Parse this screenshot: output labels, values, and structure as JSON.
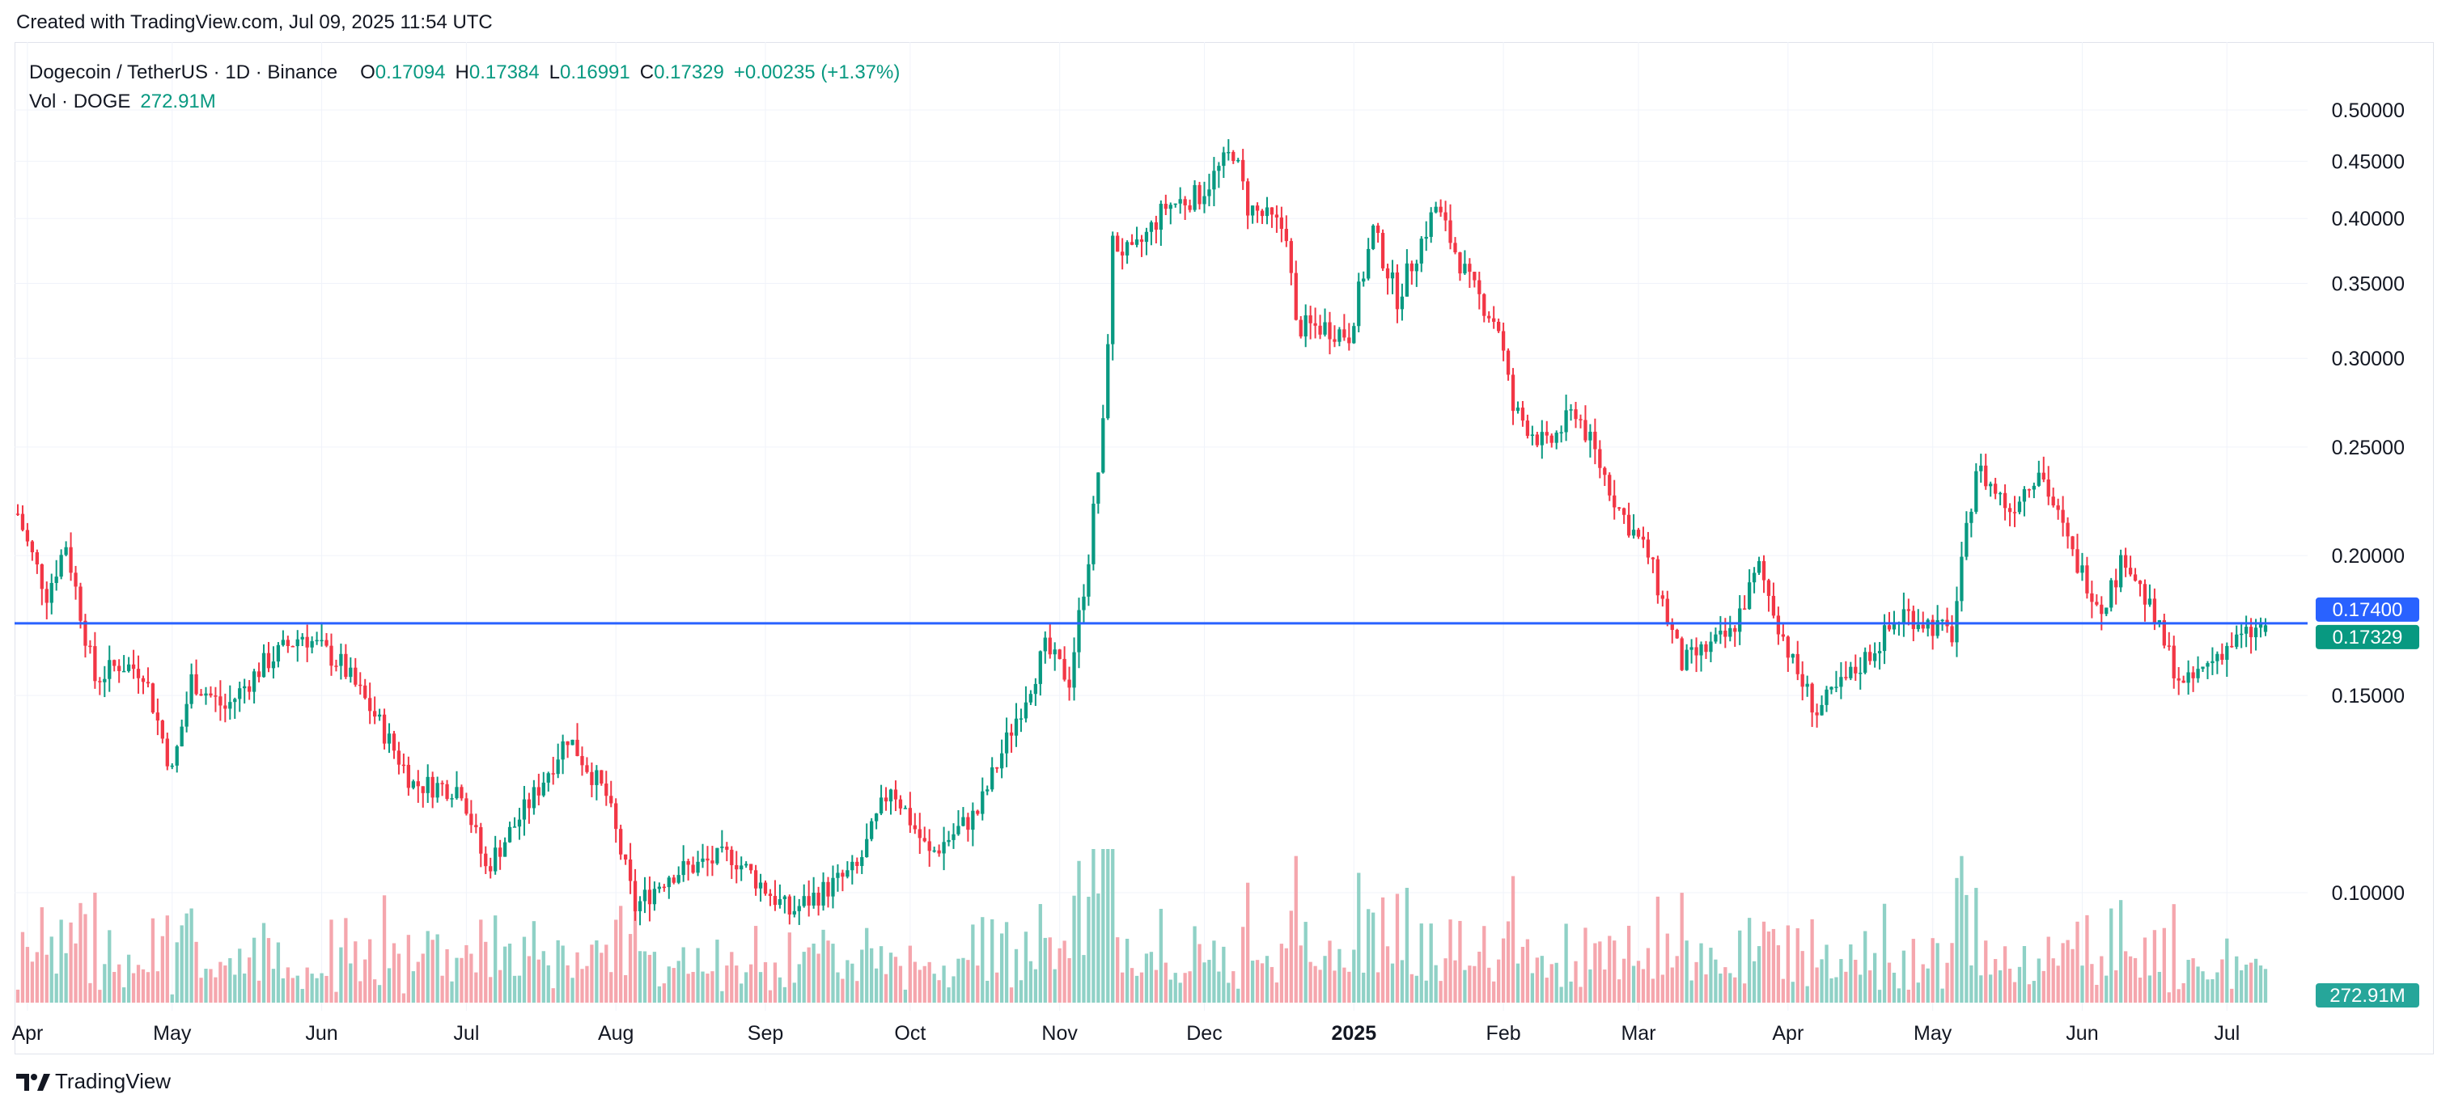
{
  "header": {
    "created_text": "Created with TradingView.com, Jul 09, 2025 11:54 UTC"
  },
  "legend": {
    "symbol": "Dogecoin / TetherUS · 1D · Binance",
    "o_label": "O",
    "o_value": "0.17094",
    "h_label": "H",
    "h_value": "0.17384",
    "l_label": "L",
    "l_value": "0.16991",
    "c_label": "C",
    "c_value": "0.17329",
    "change": "+0.00235 (+1.37%)",
    "vol_label": "Vol · DOGE",
    "vol_value": "272.91M"
  },
  "footer": {
    "brand": "TradingView"
  },
  "colors": {
    "up": "#089981",
    "down": "#f23645",
    "vol_up": "#8fd1c6",
    "vol_down": "#f5a6ad",
    "hline": "#2962ff",
    "close_tag": "#089981",
    "hline_tag": "#2962ff",
    "vol_tag": "#26a69a",
    "grid": "#f0f3fa"
  },
  "chart_data": {
    "type": "candlestick",
    "interval": "1D",
    "y_scale": "log",
    "ylim": [
      0.074,
      0.53
    ],
    "y_ticks": [
      "0.10000",
      "0.15000",
      "0.20000",
      "0.25000",
      "0.30000",
      "0.35000",
      "0.40000",
      "0.45000",
      "0.50000"
    ],
    "x_ticks": [
      "Apr",
      "May",
      "Jun",
      "Jul",
      "Aug",
      "Sep",
      "Oct",
      "Nov",
      "Dec",
      "2025",
      "Feb",
      "Mar",
      "Apr",
      "May",
      "Jun",
      "Jul"
    ],
    "x_tick_bold": "2025",
    "x_range": [
      "2024-03-30",
      "2025-07-09"
    ],
    "horizontal_line": {
      "value": 0.174,
      "label": "0.17400"
    },
    "last_price": {
      "value": 0.17329,
      "label": "0.17329"
    },
    "last_volume": {
      "label": "272.91M"
    },
    "close_series_approx": [
      {
        "x": "2024-03-30",
        "y": 0.218
      },
      {
        "x": "2024-04-01",
        "y": 0.205
      },
      {
        "x": "2024-04-05",
        "y": 0.185
      },
      {
        "x": "2024-04-09",
        "y": 0.205
      },
      {
        "x": "2024-04-13",
        "y": 0.17
      },
      {
        "x": "2024-04-15",
        "y": 0.155
      },
      {
        "x": "2024-04-20",
        "y": 0.16
      },
      {
        "x": "2024-04-25",
        "y": 0.158
      },
      {
        "x": "2024-05-01",
        "y": 0.128
      },
      {
        "x": "2024-05-05",
        "y": 0.155
      },
      {
        "x": "2024-05-12",
        "y": 0.146
      },
      {
        "x": "2024-05-20",
        "y": 0.16
      },
      {
        "x": "2024-05-28",
        "y": 0.17
      },
      {
        "x": "2024-06-05",
        "y": 0.16
      },
      {
        "x": "2024-06-12",
        "y": 0.144
      },
      {
        "x": "2024-06-20",
        "y": 0.125
      },
      {
        "x": "2024-06-30",
        "y": 0.124
      },
      {
        "x": "2024-07-05",
        "y": 0.105
      },
      {
        "x": "2024-07-15",
        "y": 0.122
      },
      {
        "x": "2024-07-22",
        "y": 0.138
      },
      {
        "x": "2024-07-30",
        "y": 0.122
      },
      {
        "x": "2024-08-05",
        "y": 0.097
      },
      {
        "x": "2024-08-12",
        "y": 0.104
      },
      {
        "x": "2024-08-25",
        "y": 0.108
      },
      {
        "x": "2024-09-06",
        "y": 0.096
      },
      {
        "x": "2024-09-20",
        "y": 0.105
      },
      {
        "x": "2024-09-27",
        "y": 0.125
      },
      {
        "x": "2024-10-05",
        "y": 0.108
      },
      {
        "x": "2024-10-15",
        "y": 0.118
      },
      {
        "x": "2024-10-22",
        "y": 0.14
      },
      {
        "x": "2024-10-29",
        "y": 0.165
      },
      {
        "x": "2024-11-03",
        "y": 0.155
      },
      {
        "x": "2024-11-07",
        "y": 0.2
      },
      {
        "x": "2024-11-10",
        "y": 0.26
      },
      {
        "x": "2024-11-12",
        "y": 0.38
      },
      {
        "x": "2024-11-16",
        "y": 0.37
      },
      {
        "x": "2024-11-23",
        "y": 0.41
      },
      {
        "x": "2024-11-30",
        "y": 0.42
      },
      {
        "x": "2024-12-07",
        "y": 0.46
      },
      {
        "x": "2024-12-10",
        "y": 0.41
      },
      {
        "x": "2024-12-18",
        "y": 0.39
      },
      {
        "x": "2024-12-20",
        "y": 0.32
      },
      {
        "x": "2024-12-26",
        "y": 0.32
      },
      {
        "x": "2024-12-31",
        "y": 0.315
      },
      {
        "x": "2025-01-05",
        "y": 0.39
      },
      {
        "x": "2025-01-10",
        "y": 0.34
      },
      {
        "x": "2025-01-18",
        "y": 0.41
      },
      {
        "x": "2025-01-25",
        "y": 0.35
      },
      {
        "x": "2025-01-31",
        "y": 0.32
      },
      {
        "x": "2025-02-03",
        "y": 0.27
      },
      {
        "x": "2025-02-10",
        "y": 0.25
      },
      {
        "x": "2025-02-16",
        "y": 0.27
      },
      {
        "x": "2025-02-25",
        "y": 0.22
      },
      {
        "x": "2025-03-03",
        "y": 0.2
      },
      {
        "x": "2025-03-10",
        "y": 0.16
      },
      {
        "x": "2025-03-20",
        "y": 0.17
      },
      {
        "x": "2025-03-26",
        "y": 0.195
      },
      {
        "x": "2025-04-02",
        "y": 0.16
      },
      {
        "x": "2025-04-07",
        "y": 0.145
      },
      {
        "x": "2025-04-15",
        "y": 0.158
      },
      {
        "x": "2025-04-25",
        "y": 0.178
      },
      {
        "x": "2025-05-05",
        "y": 0.17
      },
      {
        "x": "2025-05-10",
        "y": 0.24
      },
      {
        "x": "2025-05-17",
        "y": 0.22
      },
      {
        "x": "2025-05-23",
        "y": 0.24
      },
      {
        "x": "2025-05-30",
        "y": 0.2
      },
      {
        "x": "2025-06-05",
        "y": 0.18
      },
      {
        "x": "2025-06-10",
        "y": 0.2
      },
      {
        "x": "2025-06-16",
        "y": 0.175
      },
      {
        "x": "2025-06-22",
        "y": 0.152
      },
      {
        "x": "2025-06-30",
        "y": 0.165
      },
      {
        "x": "2025-07-09",
        "y": 0.17329
      }
    ]
  }
}
